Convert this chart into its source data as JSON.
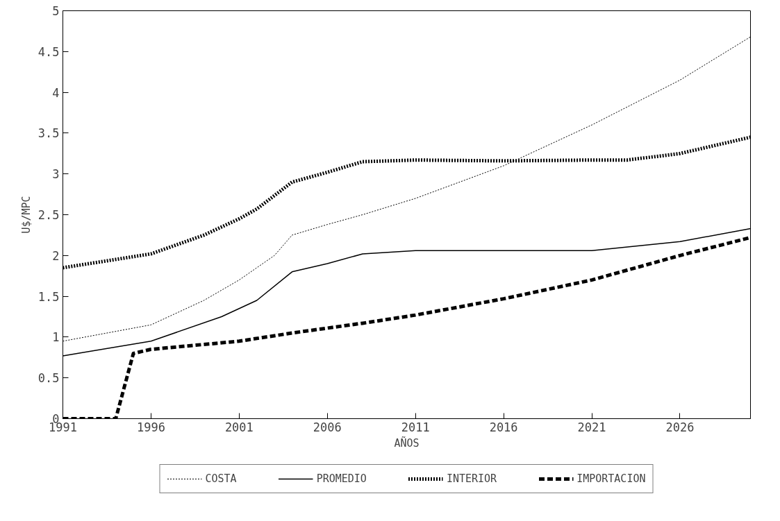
{
  "chart_data": {
    "type": "line",
    "xlabel": "AÑOS",
    "ylabel": "U$/MPC",
    "xlim": [
      1991,
      2030
    ],
    "xticks": [
      1991,
      1996,
      2001,
      2006,
      2011,
      2016,
      2021,
      2026
    ],
    "ylim": [
      0,
      5
    ],
    "yticks": [
      0,
      0.5,
      1,
      1.5,
      2,
      2.5,
      3,
      3.5,
      4,
      4.5,
      5
    ],
    "grid": false,
    "legend": "bottom",
    "marker": "none",
    "series": [
      {
        "name": "COSTA",
        "color": "#000000",
        "line_style": "dotted",
        "x": [
          1991,
          1996,
          1999,
          2001,
          2002,
          2003,
          2004,
          2006,
          2008,
          2011,
          2016,
          2021,
          2026,
          2030
        ],
        "values": [
          0.95,
          1.15,
          1.45,
          1.7,
          1.85,
          2.0,
          2.25,
          2.38,
          2.5,
          2.7,
          3.1,
          3.6,
          4.15,
          4.68
        ]
      },
      {
        "name": "PROMEDIO",
        "color": "#000000",
        "line_style": "solid",
        "x": [
          1991,
          1996,
          2000,
          2002,
          2004,
          2006,
          2008,
          2011,
          2016,
          2021,
          2026,
          2030
        ],
        "values": [
          0.77,
          0.95,
          1.25,
          1.45,
          1.8,
          1.9,
          2.02,
          2.06,
          2.06,
          2.06,
          2.17,
          2.33
        ]
      },
      {
        "name": "INTERIOR",
        "color": "#000000",
        "line_style": "dotted",
        "x": [
          1991,
          1996,
          1999,
          2001,
          2002,
          2004,
          2006,
          2008,
          2011,
          2016,
          2021,
          2023,
          2026,
          2030
        ],
        "values": [
          1.85,
          2.02,
          2.25,
          2.45,
          2.57,
          2.9,
          3.02,
          3.15,
          3.17,
          3.16,
          3.17,
          3.17,
          3.25,
          3.45
        ]
      },
      {
        "name": "IMPORTACION",
        "color": "#000000",
        "line_style": "dashed",
        "x": [
          1991,
          1994,
          1995,
          1996,
          2001,
          2004,
          2008,
          2011,
          2016,
          2021,
          2026,
          2030
        ],
        "values": [
          0,
          0,
          0.8,
          0.85,
          0.95,
          1.05,
          1.17,
          1.27,
          1.47,
          1.7,
          2.0,
          2.22
        ]
      }
    ]
  }
}
